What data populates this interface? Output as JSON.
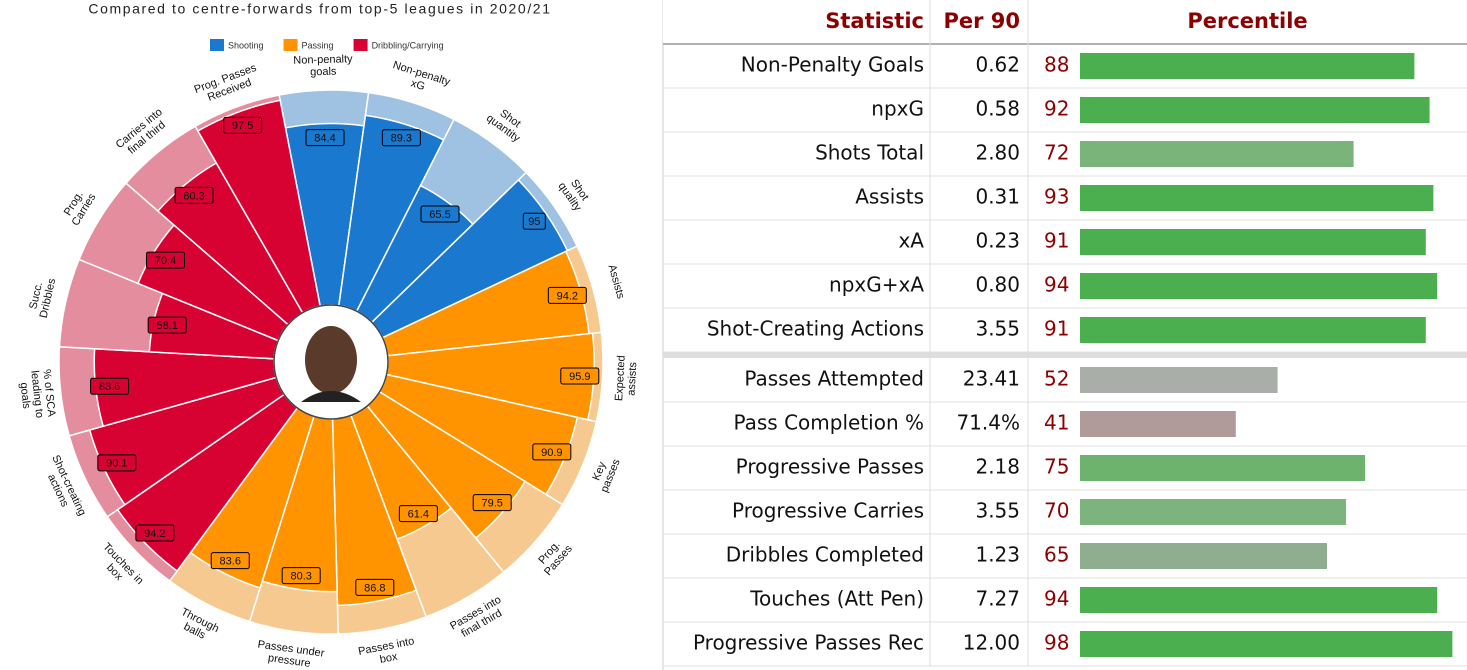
{
  "chart_data": {
    "type": "pizza",
    "title": "Compared to centre-forwards from top-5 leagues in 2020/21",
    "ylim": [
      0,
      100
    ],
    "series": [
      {
        "name": "Shooting",
        "color": "#1a78cf",
        "background": "#9fc2e2",
        "categories": [
          [
            "Non-penalty",
            "goals"
          ],
          [
            "Non-penalty",
            "xG"
          ],
          [
            "Shot",
            "quantity"
          ],
          [
            "Shot",
            "quality"
          ]
        ],
        "values": [
          84.4,
          89.3,
          65.5,
          95
        ]
      },
      {
        "name": "Passing",
        "color": "#ff9300",
        "background": "#f6c990",
        "categories": [
          [
            "Assists"
          ],
          [
            "Expected",
            "assists"
          ],
          [
            "Key",
            "passes"
          ],
          [
            "Prog.",
            "Passes"
          ],
          [
            "Passes into",
            "final third"
          ],
          [
            "Passes into",
            "box"
          ],
          [
            "Passes under",
            "pressure"
          ],
          [
            "Through",
            "balls"
          ]
        ],
        "values": [
          94.2,
          95.9,
          90.9,
          79.5,
          61.4,
          86.8,
          80.3,
          83.6
        ]
      },
      {
        "name": "Dribbling/Carrying",
        "color": "#d70232",
        "background": "#e38d9e",
        "categories": [
          [
            "Touches in",
            "box"
          ],
          [
            "Shot-creating",
            "actions"
          ],
          [
            "% of SCA",
            "leading to",
            "goals"
          ],
          [
            "Succ.",
            "Dribbles"
          ],
          [
            "Prog.",
            "Carries"
          ],
          [
            "Carries into",
            "final third"
          ],
          [
            "Prog. Passes",
            "Received"
          ]
        ],
        "values": [
          94.2,
          90.1,
          83.6,
          58.1,
          70.4,
          80.3,
          97.5
        ]
      }
    ]
  },
  "table": {
    "columns": [
      "Statistic",
      "Per 90",
      "Percentile"
    ],
    "xlim": [
      0,
      100
    ],
    "sections": [
      [
        {
          "stat": "Non-Penalty Goals",
          "per90": "0.62",
          "percentile": 88,
          "color": "#4caf4f"
        },
        {
          "stat": "npxG",
          "per90": "0.58",
          "percentile": 92,
          "color": "#4caf4f"
        },
        {
          "stat": "Shots Total",
          "per90": "2.80",
          "percentile": 72,
          "color": "#7bb47b"
        },
        {
          "stat": "Assists",
          "per90": "0.31",
          "percentile": 93,
          "color": "#4caf4f"
        },
        {
          "stat": "xA",
          "per90": "0.23",
          "percentile": 91,
          "color": "#4caf4f"
        },
        {
          "stat": "npxG+xA",
          "per90": "0.80",
          "percentile": 94,
          "color": "#4caf4f"
        },
        {
          "stat": "Shot-Creating Actions",
          "per90": "3.55",
          "percentile": 91,
          "color": "#4caf4f"
        }
      ],
      [
        {
          "stat": "Passes Attempted",
          "per90": "23.41",
          "percentile": 52,
          "color": "#a9aea8"
        },
        {
          "stat": "Pass Completion %",
          "per90": "71.4%",
          "percentile": 41,
          "color": "#b09b9a"
        },
        {
          "stat": "Progressive Passes",
          "per90": "2.18",
          "percentile": 75,
          "color": "#6db36e"
        },
        {
          "stat": "Progressive Carries",
          "per90": "3.55",
          "percentile": 70,
          "color": "#7db47e"
        },
        {
          "stat": "Dribbles Completed",
          "per90": "1.23",
          "percentile": 65,
          "color": "#8fae8f"
        },
        {
          "stat": "Touches (Att Pen)",
          "per90": "7.27",
          "percentile": 94,
          "color": "#4caf4f"
        },
        {
          "stat": "Progressive Passes Rec",
          "per90": "12.00",
          "percentile": 98,
          "color": "#4caf4f"
        }
      ]
    ]
  }
}
